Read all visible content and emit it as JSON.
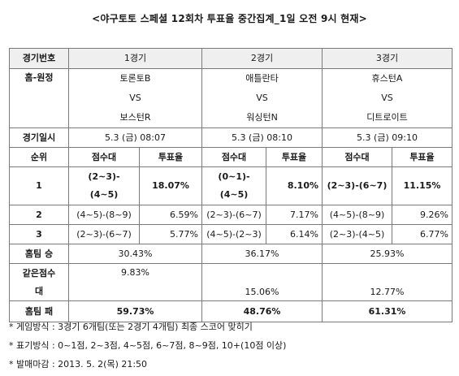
{
  "title": "<야구토토 스페셜 12회차 투표율 중간집계_1일 오전 9시 현재>",
  "table": {
    "game_no_label": "경기번호",
    "games": [
      "1경기",
      "2경기",
      "3경기"
    ],
    "home_away_label": "홈-원정",
    "matchups": [
      {
        "home": "토론토B",
        "vs": "VS",
        "away": "보스턴R"
      },
      {
        "home": "애틀란타",
        "vs": "VS",
        "away": "워싱턴N"
      },
      {
        "home": "휴스턴A",
        "vs": "VS",
        "away": "디트로이트"
      }
    ],
    "date_label": "경기일시",
    "dates": [
      "5.3 (금) 08:07",
      "5.3 (금) 08:10",
      "5.3 (금) 09:10"
    ],
    "rank_label": "순위",
    "score_label": "점수대",
    "rate_label": "투표율",
    "ranks": [
      {
        "rank": "1",
        "cells": [
          {
            "score_line1": "(2~3)-",
            "score_line2": "(4~5)",
            "rate": "18.07%"
          },
          {
            "score_line1": "(0~1)-",
            "score_line2": "(4~5)",
            "rate": "8.10%"
          },
          {
            "score": "(2~3)-(6~7)",
            "rate": "11.15%"
          }
        ]
      },
      {
        "rank": "2",
        "cells": [
          {
            "score": "(4~5)-(8~9)",
            "rate": "6.59%"
          },
          {
            "score": "(2~3)-(6~7)",
            "rate": "7.17%"
          },
          {
            "score": "(4~5)-(8~9)",
            "rate": "9.26%"
          }
        ]
      },
      {
        "rank": "3",
        "cells": [
          {
            "score": "(2~3)-(6~7)",
            "rate": "5.77%"
          },
          {
            "score": "(4~5)-(2~3)",
            "rate": "6.14%"
          },
          {
            "score": "(2~3)-(4~5)",
            "rate": "6.77%"
          }
        ]
      }
    ],
    "home_win_label": "홈팀 승",
    "home_win": [
      "30.43%",
      "36.17%",
      "25.93%"
    ],
    "draw_label_line1": "같은점수",
    "draw_label_line2": "대",
    "draw": [
      "9.83%",
      "15.06%",
      "12.77%"
    ],
    "home_loss_label": "홈팀 패",
    "home_loss": [
      "59.73%",
      "48.76%",
      "61.31%"
    ]
  },
  "notes": [
    "* 게임방식 : 3경기 6개팀(또는 2경기 4개팀) 최종 스코어 맞히기",
    "* 표기방식 : 0~1점, 2~3점, 4~5점, 6~7점, 8~9점, 10+(10점 이상)",
    "* 발매마감 : 2013. 5. 2(목) 21:50"
  ]
}
